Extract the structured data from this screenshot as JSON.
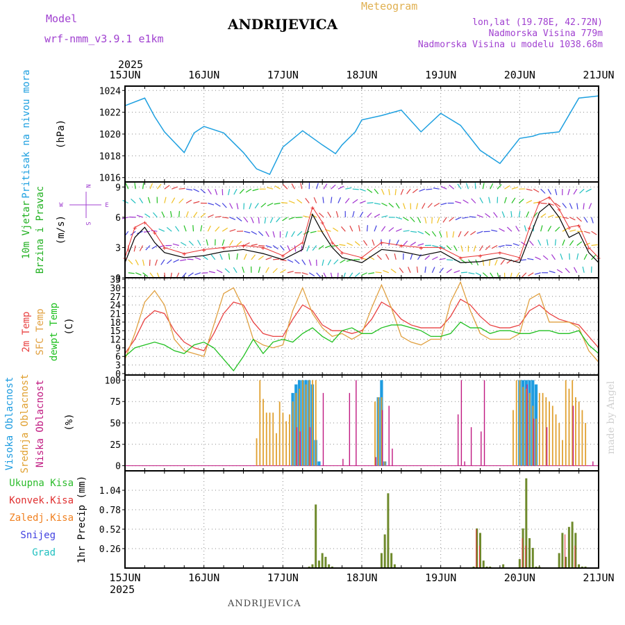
{
  "header": {
    "model_label": "Model",
    "model_name": "wrf-nmm_v3.9.1 e1km",
    "station": "ANDRIJEVICA",
    "product": "Meteogram",
    "lonlat": "lon,lat (19.78E, 42.72N)",
    "elevation": "Nadmorska Visina 779m",
    "model_elevation": "Nadmorska Visina u modelu 1038.68m",
    "year_top": "2025",
    "year_bottom": "2025",
    "footer_station": "ANDRIJEVICA",
    "watermark": "made by Angel"
  },
  "colors": {
    "pressure": "#1ea0e0",
    "temp2m": "#e84040",
    "sfc": "#e0a040",
    "dew": "#20c020",
    "high_cloud": "#1e9ce0",
    "mid_cloud": "#e0a030",
    "low_cloud": "#c01880",
    "precip_total": "#2cbc2c",
    "precip_conv": "#e03030",
    "precip_frozen": "#f08020",
    "snow": "#4040e0",
    "hail": "#20c0c0",
    "wind_speed": "#000000",
    "wind_gust": "#e83030"
  },
  "chart_data": [
    {
      "type": "line",
      "panel": "pressure",
      "title": "Pritisak na nivou mora",
      "ylabel": "(hPa)",
      "x_ticks": [
        "15JUN",
        "16JUN",
        "17JUN",
        "18JUN",
        "19JUN",
        "20JUN",
        "21JUN"
      ],
      "ylim": [
        1015.6,
        1024.4
      ],
      "y_ticks": [
        "1016",
        "1018",
        "1020",
        "1022",
        "1024"
      ],
      "grid": true,
      "x_hours": [
        0,
        6,
        9,
        12,
        18,
        21,
        24,
        30,
        36,
        40,
        44,
        48,
        54,
        60,
        64,
        66,
        70,
        72,
        78,
        84,
        90,
        96,
        102,
        108,
        114,
        120,
        124,
        126,
        132,
        138,
        144
      ],
      "series": [
        {
          "name": "Pritisak na nivou mora",
          "values": [
            1022.6,
            1023.3,
            1021.6,
            1020.2,
            1018.3,
            1020.1,
            1020.7,
            1020.1,
            1018.3,
            1016.8,
            1016.3,
            1018.8,
            1020.3,
            1019.0,
            1018.2,
            1019.0,
            1020.2,
            1021.3,
            1021.7,
            1022.2,
            1020.2,
            1021.9,
            1020.8,
            1018.5,
            1017.3,
            1019.6,
            1019.8,
            1020.0,
            1020.2,
            1023.3,
            1023.5
          ]
        }
      ]
    },
    {
      "type": "line",
      "panel": "wind",
      "title": "10m Vjetar Brzina i Pravac",
      "ylabel": "(m/s)",
      "compass_labels": [
        "N",
        "W",
        "E",
        "S"
      ],
      "ylim": [
        0,
        9.5
      ],
      "y_ticks": [
        "0",
        "3",
        "6",
        "9"
      ],
      "grid": true,
      "x_hours": [
        0,
        3,
        6,
        9,
        12,
        18,
        24,
        30,
        36,
        42,
        48,
        54,
        57,
        60,
        63,
        66,
        72,
        78,
        84,
        90,
        96,
        102,
        108,
        114,
        120,
        123,
        126,
        129,
        132,
        135,
        138,
        141,
        144
      ],
      "series": [
        {
          "name": "speed",
          "values": [
            1.5,
            4.0,
            5.0,
            3.5,
            2.5,
            2.0,
            2.2,
            2.6,
            2.8,
            2.4,
            1.8,
            2.8,
            6.3,
            4.5,
            3.0,
            2.0,
            1.5,
            2.8,
            2.6,
            2.2,
            2.6,
            1.5,
            1.6,
            2.0,
            1.5,
            4.0,
            6.5,
            7.3,
            6.0,
            4.0,
            4.5,
            2.5,
            1.5
          ]
        },
        {
          "name": "gust",
          "values": [
            2.0,
            5.0,
            5.5,
            4.5,
            3.0,
            2.4,
            2.8,
            3.0,
            3.2,
            3.0,
            2.2,
            3.5,
            7.0,
            5.5,
            3.5,
            2.5,
            2.0,
            3.5,
            3.2,
            3.0,
            3.0,
            2.0,
            2.2,
            2.5,
            2.0,
            5.0,
            7.5,
            8.0,
            6.8,
            5.0,
            5.2,
            3.0,
            2.0
          ]
        }
      ]
    },
    {
      "type": "line",
      "panel": "temperature",
      "title": "2m Temp SFC Temp dewpt Temp",
      "series_labels": [
        "2m Temp",
        "SFC Temp",
        "dewpt Temp"
      ],
      "ylabel": "(C)",
      "ylim": [
        -0.5,
        33.5
      ],
      "y_ticks": [
        "0",
        "3",
        "6",
        "9",
        "12",
        "15",
        "18",
        "21",
        "24",
        "27",
        "30",
        "33"
      ],
      "grid": true,
      "x_hours": [
        0,
        3,
        6,
        9,
        12,
        15,
        18,
        21,
        24,
        27,
        30,
        33,
        36,
        39,
        42,
        45,
        48,
        51,
        54,
        57,
        60,
        63,
        66,
        69,
        72,
        75,
        78,
        81,
        84,
        87,
        90,
        93,
        96,
        99,
        102,
        105,
        108,
        111,
        114,
        117,
        120,
        123,
        126,
        129,
        132,
        135,
        138,
        141,
        144
      ],
      "series": [
        {
          "name": "2m Temp",
          "values": [
            7,
            12,
            19,
            22,
            21,
            15,
            11,
            9,
            8,
            14,
            21,
            25,
            24,
            18,
            14,
            13,
            13,
            19,
            24,
            22,
            17,
            15,
            15,
            14,
            15,
            19,
            25,
            23,
            19,
            17,
            16,
            16,
            16,
            20,
            26,
            24,
            20,
            17,
            16,
            16,
            17,
            22,
            24,
            21,
            19,
            18,
            17,
            13,
            9
          ]
        },
        {
          "name": "SFC Temp",
          "values": [
            5,
            14,
            25,
            29,
            24,
            12,
            8,
            7,
            6,
            17,
            28,
            30,
            23,
            12,
            10,
            9,
            10,
            22,
            30,
            21,
            16,
            13,
            14,
            12,
            14,
            23,
            31,
            23,
            13,
            11,
            10,
            12,
            12,
            25,
            32,
            22,
            14,
            12,
            12,
            12,
            14,
            26,
            28,
            18,
            18,
            18,
            16,
            8,
            4
          ]
        },
        {
          "name": "dewpt Temp",
          "values": [
            6,
            9,
            10,
            11,
            10,
            8,
            7,
            10,
            11,
            9,
            5,
            1,
            6,
            12,
            7,
            11,
            12,
            11,
            14,
            16,
            13,
            11,
            15,
            16,
            14,
            14,
            16,
            17,
            17,
            16,
            15,
            13,
            13,
            14,
            18,
            16,
            16,
            14,
            15,
            15,
            14,
            14,
            15,
            15,
            14,
            14,
            15,
            10,
            7
          ]
        }
      ]
    },
    {
      "type": "bar",
      "panel": "clouds",
      "title": "Visoka Oblacnost Srednja Oblacnost Niska Oblacnost",
      "series_labels": [
        "Visoka Oblacnost",
        "Srednja Oblacnost",
        "Niska Oblacnost"
      ],
      "ylabel": "(%)",
      "ylim": [
        -6,
        106
      ],
      "y_ticks": [
        "0",
        "25",
        "50",
        "75",
        "100"
      ],
      "grid": true,
      "series": [
        {
          "name": "Visoka Oblacnost",
          "hours": [
            36,
            37,
            38,
            40,
            41,
            42,
            43,
            44,
            45,
            46,
            47,
            48,
            49,
            50,
            51,
            52,
            53,
            54,
            55,
            56,
            57,
            58,
            59,
            60,
            61,
            62,
            63,
            64,
            65,
            66,
            67,
            68,
            69,
            70,
            71,
            72,
            73,
            74,
            75,
            76,
            77,
            78,
            79,
            80,
            81,
            82,
            83,
            84,
            85,
            86,
            87,
            88,
            89,
            90,
            91,
            92,
            93,
            94,
            95,
            96,
            97,
            98,
            99,
            100,
            101,
            102,
            103,
            104,
            105,
            106,
            107,
            108,
            109,
            110,
            111,
            112,
            113,
            114,
            115,
            116,
            117,
            118,
            119,
            120,
            121,
            122,
            123,
            124,
            125,
            126,
            127,
            128,
            129,
            130,
            131,
            132,
            133,
            134,
            135,
            136,
            137,
            138,
            139,
            140,
            141,
            142
          ],
          "values": [
            2,
            2,
            2,
            2,
            2,
            2,
            2,
            2,
            2,
            2,
            2,
            2,
            2,
            2,
            2,
            2,
            2,
            2,
            2,
            2,
            2,
            2,
            2,
            2,
            2,
            2,
            2,
            2,
            2,
            2,
            2,
            2,
            2,
            2,
            2,
            2,
            2,
            2,
            2,
            2,
            2,
            2,
            2,
            2,
            2,
            2,
            2,
            2,
            2,
            2,
            2,
            2,
            2,
            2,
            2,
            2,
            2,
            2,
            2,
            2,
            2,
            2,
            2,
            2,
            2,
            2,
            2,
            2,
            2,
            2,
            2,
            2,
            2,
            2,
            2,
            2,
            2,
            2,
            2,
            2,
            2,
            2,
            2,
            2,
            2,
            2,
            2,
            2,
            2,
            2,
            2,
            2,
            2,
            2,
            2,
            2,
            2,
            2,
            2,
            2,
            2,
            2,
            2,
            2,
            2,
            2
          ],
          "peaks": {
            "hours": [
              51,
              52,
              53,
              54,
              55,
              56,
              57,
              58,
              59,
              60,
              61,
              62,
              63,
              64,
              65,
              77,
              78,
              79,
              80,
              81,
              82,
              83,
              84,
              85,
              86,
              87,
              88,
              89,
              90,
              91,
              92,
              93,
              94,
              95,
              96,
              97,
              98,
              99,
              100,
              101,
              102,
              103,
              104,
              105,
              106,
              107,
              108,
              109,
              110,
              111,
              112,
              113,
              114,
              115,
              116,
              117,
              118,
              119,
              120,
              121,
              122,
              123,
              124,
              125
            ],
            "values": [
              85,
              95,
              100,
              100,
              100,
              100,
              95,
              30,
              5,
              0,
              0,
              0,
              0,
              0,
              0,
              80,
              100,
              5,
              0,
              0,
              0,
              0,
              0,
              0,
              0,
              0,
              0,
              0,
              0,
              0,
              0,
              0,
              0,
              0,
              0,
              0,
              0,
              0,
              0,
              0,
              0,
              0,
              0,
              0,
              0,
              0,
              0,
              0,
              0,
              0,
              0,
              0,
              0,
              0,
              0,
              0,
              0,
              0,
              100,
              100,
              100,
              100,
              100,
              95
            ]
          }
        },
        {
          "name": "Srednja Oblacnost",
          "hours": [
            40,
            41,
            42,
            43,
            44,
            45,
            46,
            47,
            48,
            49,
            50,
            51,
            52,
            53,
            54,
            55,
            56,
            57,
            58,
            76,
            77,
            78,
            79,
            80,
            116,
            117,
            118,
            119,
            120,
            121,
            122,
            123,
            124,
            125,
            126,
            127,
            128,
            129,
            130,
            131,
            132,
            133,
            134,
            135,
            136,
            137,
            138,
            139,
            140
          ],
          "values": [
            32,
            100,
            78,
            62,
            62,
            62,
            38,
            75,
            62,
            52,
            60,
            75,
            85,
            90,
            100,
            95,
            100,
            100,
            100,
            75,
            80,
            80,
            5,
            0,
            0,
            0,
            65,
            100,
            100,
            92,
            90,
            85,
            70,
            55,
            85,
            85,
            80,
            75,
            70,
            60,
            50,
            30,
            100,
            90,
            100,
            80,
            75,
            65,
            50
          ]
        },
        {
          "name": "Niska Oblacnost",
          "hours": [
            52,
            53,
            56,
            60,
            66,
            68,
            70,
            76,
            78,
            80,
            81,
            101,
            102,
            103,
            105,
            108,
            109,
            122,
            124,
            128,
            136,
            142
          ],
          "values": [
            45,
            40,
            45,
            85,
            8,
            85,
            100,
            10,
            65,
            70,
            20,
            60,
            100,
            5,
            45,
            40,
            100,
            95,
            55,
            45,
            70,
            5
          ]
        }
      ]
    },
    {
      "type": "bar",
      "panel": "precipitation",
      "title": "Ukupna Kisa Konvek.Kisa Zaledj.Kisa Snijeg Grad",
      "series_labels": [
        "Ukupna Kisa",
        "Konvek.Kisa",
        "Zaledj.Kisa",
        "Snijeg",
        "Grad"
      ],
      "ylabel": "1hr Precip (mm)",
      "ylim": [
        0,
        1.3
      ],
      "y_ticks": [
        "0.26",
        "0.52",
        "0.78",
        "1.04"
      ],
      "grid": true,
      "series": [
        {
          "name": "Ukupna Kisa",
          "hours": [
            56,
            57,
            58,
            59,
            60,
            61,
            62,
            63,
            78,
            79,
            80,
            81,
            82,
            106,
            107,
            108,
            109,
            110,
            111,
            115,
            120,
            121,
            122,
            123,
            124,
            125,
            126,
            132,
            133,
            134,
            135,
            136,
            137,
            138,
            139,
            140
          ],
          "values": [
            0.02,
            0.05,
            0.85,
            0.1,
            0.2,
            0.15,
            0.05,
            0.02,
            0.2,
            0.45,
            1.0,
            0.2,
            0.05,
            0.02,
            0.53,
            0.47,
            0.1,
            0.02,
            0.02,
            0.05,
            0.12,
            0.53,
            1.2,
            0.4,
            0.27,
            0.02,
            0.02,
            0.2,
            0.47,
            0.15,
            0.55,
            0.62,
            0.47,
            0.05,
            0.02,
            0.02
          ]
        },
        {
          "name": "Konvek.Kisa",
          "hours": [
            107,
            108,
            121,
            122,
            134,
            137
          ],
          "values": [
            0.52,
            0.3,
            0.4,
            0.3,
            0.45,
            0.3
          ]
        }
      ]
    }
  ]
}
